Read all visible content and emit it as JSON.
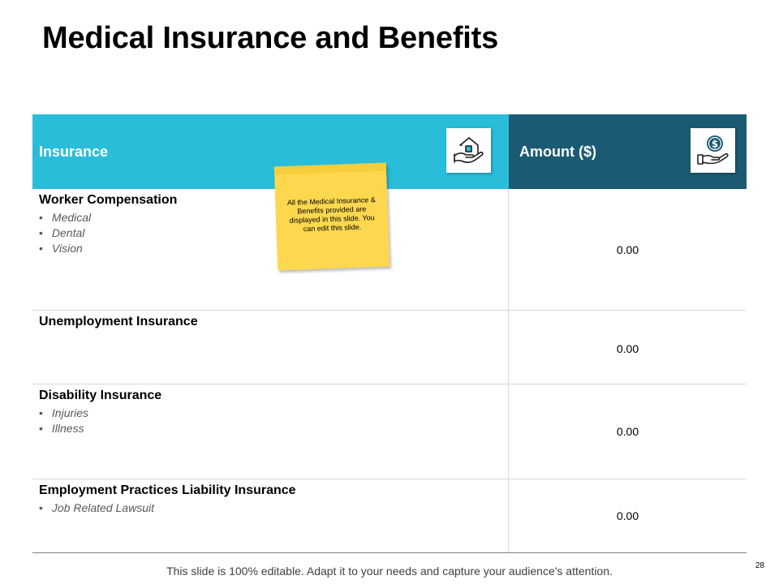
{
  "title": "Medical Insurance and Benefits",
  "table": {
    "header": {
      "col1": "Insurance",
      "col1_icon": "hand-holding-house-icon",
      "col2": "Amount ($)",
      "col2_icon": "hand-holding-dollar-icon",
      "col1_color": "#29bdd9",
      "col2_color": "#1b5a73"
    },
    "rows": [
      {
        "title": "Worker Compensation",
        "bullets": [
          "Medical",
          "Dental",
          "Vision"
        ],
        "amount": "0.00"
      },
      {
        "title": "Unemployment Insurance",
        "bullets": [],
        "amount": "0.00"
      },
      {
        "title": "Disability Insurance",
        "bullets": [
          "Injuries",
          "Illness"
        ],
        "amount": "0.00"
      },
      {
        "title": "Employment Practices Liability Insurance",
        "bullets": [
          "Job Related Lawsuit"
        ],
        "amount": "0.00"
      }
    ]
  },
  "sticky_note": {
    "text": "All the Medical Insurance & Benefits provided are displayed in this slide. You can edit this slide.",
    "color": "#fdd84f"
  },
  "footer": "This slide is 100% editable. Adapt it to your needs and capture your audience's attention.",
  "page_number": "28"
}
